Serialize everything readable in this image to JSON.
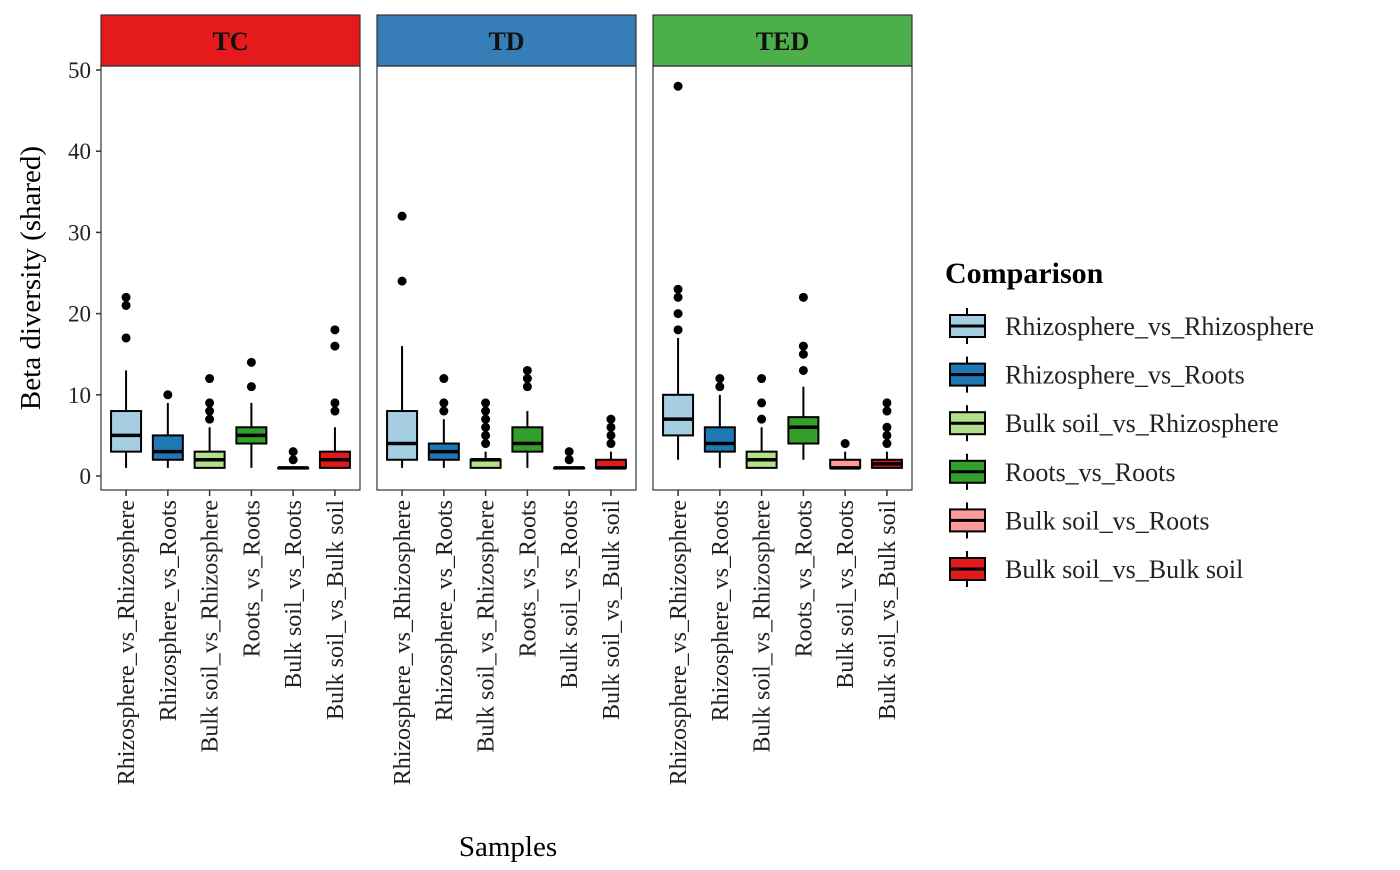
{
  "chart_data": {
    "type": "boxplot",
    "xlabel": "Samples",
    "ylabel": "Beta diversity (shared)",
    "ylim": [
      0,
      50
    ],
    "yticks": [
      0,
      10,
      20,
      30,
      40,
      50
    ],
    "grid": false,
    "legend": {
      "title": "Comparison",
      "position": "right"
    },
    "categories": [
      "Rhizosphere_vs_Rhizosphere",
      "Rhizosphere_vs_Roots",
      "Bulk soil_vs_Rhizosphere",
      "Roots_vs_Roots",
      "Bulk soil_vs_Roots",
      "Bulk soil_vs_Bulk soil"
    ],
    "colors": [
      "#A6CEE3",
      "#1F78B4",
      "#B2DF8A",
      "#33A02C",
      "#FB9A99",
      "#E31A1C"
    ],
    "facets": [
      {
        "name": "TC",
        "color": "#E41A1C",
        "boxes": [
          {
            "lower": 1,
            "q1": 3,
            "median": 5,
            "q3": 8,
            "upper": 13,
            "outliers": [
              17,
              21,
              22
            ]
          },
          {
            "lower": 1,
            "q1": 2,
            "median": 3,
            "q3": 5,
            "upper": 9,
            "outliers": [
              10
            ]
          },
          {
            "lower": 1,
            "q1": 1,
            "median": 2,
            "q3": 3,
            "upper": 6,
            "outliers": [
              7,
              8,
              9,
              12
            ]
          },
          {
            "lower": 1,
            "q1": 4,
            "median": 5,
            "q3": 6,
            "upper": 9,
            "outliers": [
              11,
              14
            ]
          },
          {
            "lower": 1,
            "q1": 1,
            "median": 1,
            "q3": 1,
            "upper": 1,
            "outliers": [
              2,
              3
            ]
          },
          {
            "lower": 1,
            "q1": 1,
            "median": 2,
            "q3": 3,
            "upper": 6,
            "outliers": [
              8,
              9,
              16,
              18
            ]
          }
        ]
      },
      {
        "name": "TD",
        "color": "#377EB8",
        "boxes": [
          {
            "lower": 1,
            "q1": 2,
            "median": 4,
            "q3": 8,
            "upper": 16,
            "outliers": [
              24,
              32
            ]
          },
          {
            "lower": 1,
            "q1": 2,
            "median": 3,
            "q3": 4,
            "upper": 7,
            "outliers": [
              8,
              9,
              12
            ]
          },
          {
            "lower": 1,
            "q1": 1,
            "median": 2,
            "q3": 2,
            "upper": 3,
            "outliers": [
              4,
              5,
              6,
              7,
              8,
              9
            ]
          },
          {
            "lower": 1,
            "q1": 3,
            "median": 4,
            "q3": 6,
            "upper": 8,
            "outliers": [
              11,
              12,
              13
            ]
          },
          {
            "lower": 1,
            "q1": 1,
            "median": 1,
            "q3": 1,
            "upper": 1,
            "outliers": [
              2,
              3
            ]
          },
          {
            "lower": 1,
            "q1": 1,
            "median": 1,
            "q3": 2,
            "upper": 3,
            "outliers": [
              4,
              5,
              6,
              7
            ]
          }
        ]
      },
      {
        "name": "TED",
        "color": "#4DAF4A",
        "boxes": [
          {
            "lower": 2,
            "q1": 5,
            "median": 7,
            "q3": 10,
            "upper": 17,
            "outliers": [
              18,
              20,
              22,
              23,
              48
            ]
          },
          {
            "lower": 1,
            "q1": 3,
            "median": 4,
            "q3": 6,
            "upper": 10,
            "outliers": [
              11,
              12
            ]
          },
          {
            "lower": 1,
            "q1": 1,
            "median": 2,
            "q3": 3,
            "upper": 6,
            "outliers": [
              7,
              9,
              12
            ]
          },
          {
            "lower": 2,
            "q1": 4,
            "median": 6,
            "q3": 7.25,
            "upper": 11,
            "outliers": [
              13,
              15,
              16,
              22
            ]
          },
          {
            "lower": 1,
            "q1": 1,
            "median": 1,
            "q3": 2,
            "upper": 3,
            "outliers": [
              4
            ]
          },
          {
            "lower": 1,
            "q1": 1,
            "median": 1.5,
            "q3": 2,
            "upper": 3,
            "outliers": [
              4,
              5,
              6,
              8,
              9
            ]
          }
        ]
      }
    ]
  }
}
